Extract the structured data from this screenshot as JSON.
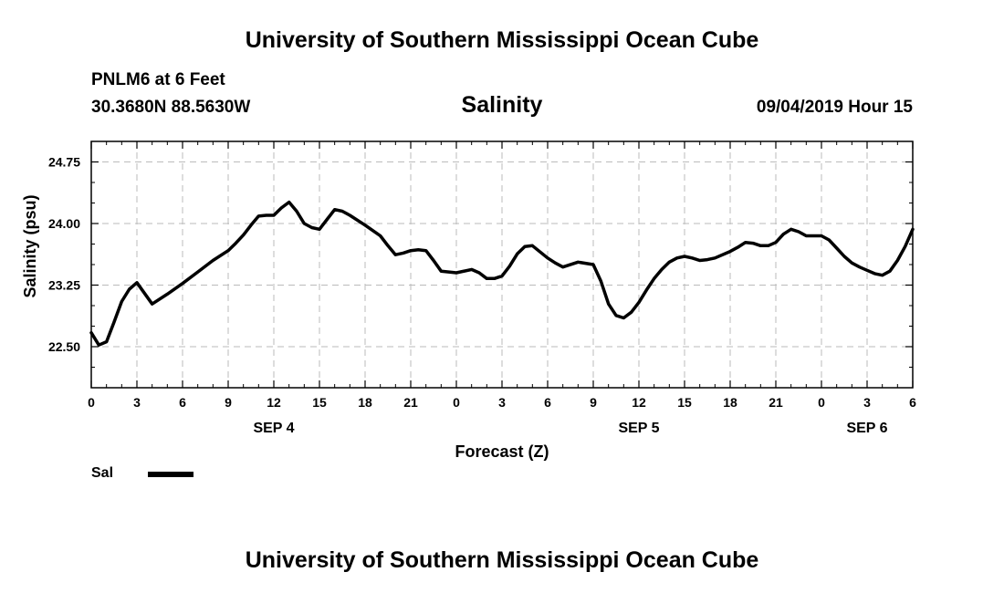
{
  "header": {
    "title": "University of Southern Mississippi Ocean Cube",
    "station": "PNLM6 at 6 Feet",
    "coords": "30.3680N 88.5630W",
    "forecast_time": "09/04/2019 Hour 15"
  },
  "footer": {
    "title": "University of Southern Mississippi Ocean Cube"
  },
  "legend": {
    "label": "Sal",
    "color": "#000000"
  },
  "chart_data": {
    "type": "line",
    "title": "Salinity",
    "xlabel": "Forecast (Z)",
    "ylabel": "Salinity (psu)",
    "x_unit": "hours since 00Z SEP 4",
    "xlim": [
      0,
      54
    ],
    "ylim": [
      22.0,
      25.0
    ],
    "grid": true,
    "legend_position": "bottom-left",
    "x_ticks": [
      0,
      3,
      6,
      9,
      12,
      15,
      18,
      21,
      24,
      27,
      30,
      33,
      36,
      39,
      42,
      45,
      48,
      51,
      54
    ],
    "x_tick_labels": [
      "0",
      "3",
      "6",
      "9",
      "12",
      "15",
      "18",
      "21",
      "0",
      "3",
      "6",
      "9",
      "12",
      "15",
      "18",
      "21",
      "0",
      "3",
      "6"
    ],
    "date_labels": [
      {
        "x": 12,
        "label": "SEP 4"
      },
      {
        "x": 36,
        "label": "SEP 5"
      },
      {
        "x": 51,
        "label": "SEP 6"
      }
    ],
    "y_ticks": [
      22.5,
      23.25,
      24.0,
      24.75
    ],
    "y_tick_labels": [
      "22.50",
      "23.25",
      "24.00",
      "24.75"
    ],
    "series": [
      {
        "name": "Sal",
        "color": "#000000",
        "x": [
          0,
          0.5,
          1,
          1.5,
          2,
          2.5,
          3,
          4,
          5,
          6,
          7,
          8,
          9,
          9.5,
          10,
          10.5,
          11,
          11.5,
          12,
          12.5,
          13,
          13.5,
          14,
          14.5,
          15,
          15.5,
          16,
          16.5,
          17,
          18,
          19,
          19.5,
          20,
          20.5,
          21,
          21.5,
          22,
          22.5,
          23,
          24,
          25,
          25.5,
          26,
          26.5,
          27,
          27.5,
          28,
          28.5,
          29,
          30,
          30.5,
          31,
          32,
          33,
          33.5,
          34,
          34.5,
          35,
          35.5,
          36,
          36.5,
          37,
          37.5,
          38,
          38.5,
          39,
          39.5,
          40,
          40.5,
          41,
          42,
          42.5,
          43,
          43.5,
          44,
          44.5,
          45,
          45.5,
          46,
          46.5,
          47,
          47.5,
          48,
          48.5,
          49,
          49.5,
          50,
          50.5,
          51,
          51.5,
          52,
          52.5,
          53,
          53.5,
          54
        ],
        "y": [
          22.67,
          22.52,
          22.56,
          22.8,
          23.05,
          23.2,
          23.28,
          23.02,
          23.14,
          23.27,
          23.41,
          23.55,
          23.67,
          23.76,
          23.86,
          23.98,
          24.09,
          24.1,
          24.1,
          24.19,
          24.26,
          24.15,
          24.0,
          23.95,
          23.93,
          24.05,
          24.17,
          24.15,
          24.1,
          23.98,
          23.85,
          23.73,
          23.62,
          23.64,
          23.67,
          23.68,
          23.67,
          23.55,
          23.42,
          23.4,
          23.44,
          23.4,
          23.33,
          23.33,
          23.36,
          23.48,
          23.63,
          23.72,
          23.73,
          23.58,
          23.52,
          23.47,
          23.53,
          23.5,
          23.3,
          23.02,
          22.88,
          22.85,
          22.92,
          23.04,
          23.19,
          23.33,
          23.44,
          23.53,
          23.58,
          23.6,
          23.58,
          23.55,
          23.56,
          23.58,
          23.66,
          23.71,
          23.77,
          23.76,
          23.73,
          23.73,
          23.77,
          23.87,
          23.93,
          23.9,
          23.85,
          23.85,
          23.85,
          23.8,
          23.7,
          23.6,
          23.52,
          23.47,
          23.43,
          23.39,
          23.37,
          23.42,
          23.55,
          23.72,
          23.93
        ]
      }
    ]
  }
}
